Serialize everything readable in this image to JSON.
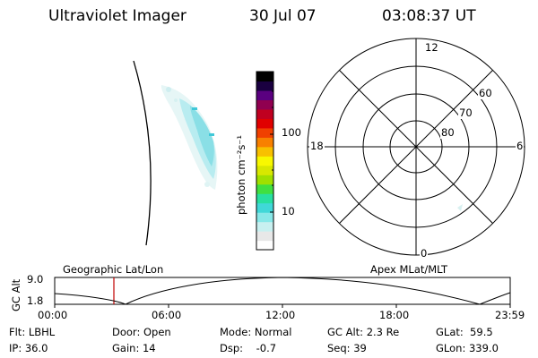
{
  "header": {
    "instrument": "Ultraviolet Imager",
    "date": "30 Jul 07",
    "time": "03:08:37 UT"
  },
  "colorbar": {
    "label": "photon cm⁻²s⁻¹",
    "ticks": [
      "100",
      "10"
    ],
    "colors": [
      "#ffffff",
      "#e8e8e8",
      "#c8f0f0",
      "#88e8e8",
      "#40d8d8",
      "#28e0a0",
      "#40e040",
      "#a0e000",
      "#d8e800",
      "#f8f800",
      "#f8c000",
      "#f88000",
      "#f04000",
      "#e00000",
      "#c00020",
      "#900050",
      "#5a0080",
      "#1a0040",
      "#000000"
    ]
  },
  "polar": {
    "mlt_labels": {
      "top": "12",
      "left": "18",
      "right": "6",
      "bottom": "0"
    },
    "lat_labels": [
      "60",
      "70",
      "80"
    ]
  },
  "timeline": {
    "ylabel": "GC Alt",
    "yticks": [
      "9.0",
      "1.8"
    ],
    "left_label": "Geographic Lat/Lon",
    "right_label": "Apex MLat/MLT",
    "xticks": [
      "00:00",
      "06:00",
      "12:00",
      "18:00",
      "23:59"
    ],
    "marker_time": "03:08:37"
  },
  "info": {
    "flt": "Flt: LBHL",
    "ip": "IP: 36.0",
    "door": "Door: Open",
    "gain": "Gain: 14",
    "mode": "Mode: Normal",
    "dsp": "Dsp:    -0.7",
    "gcalt": "GC Alt: 2.3 Re",
    "seq": "Seq: 39",
    "glat": "GLat:  59.5",
    "glon": "GLon: 339.0"
  }
}
